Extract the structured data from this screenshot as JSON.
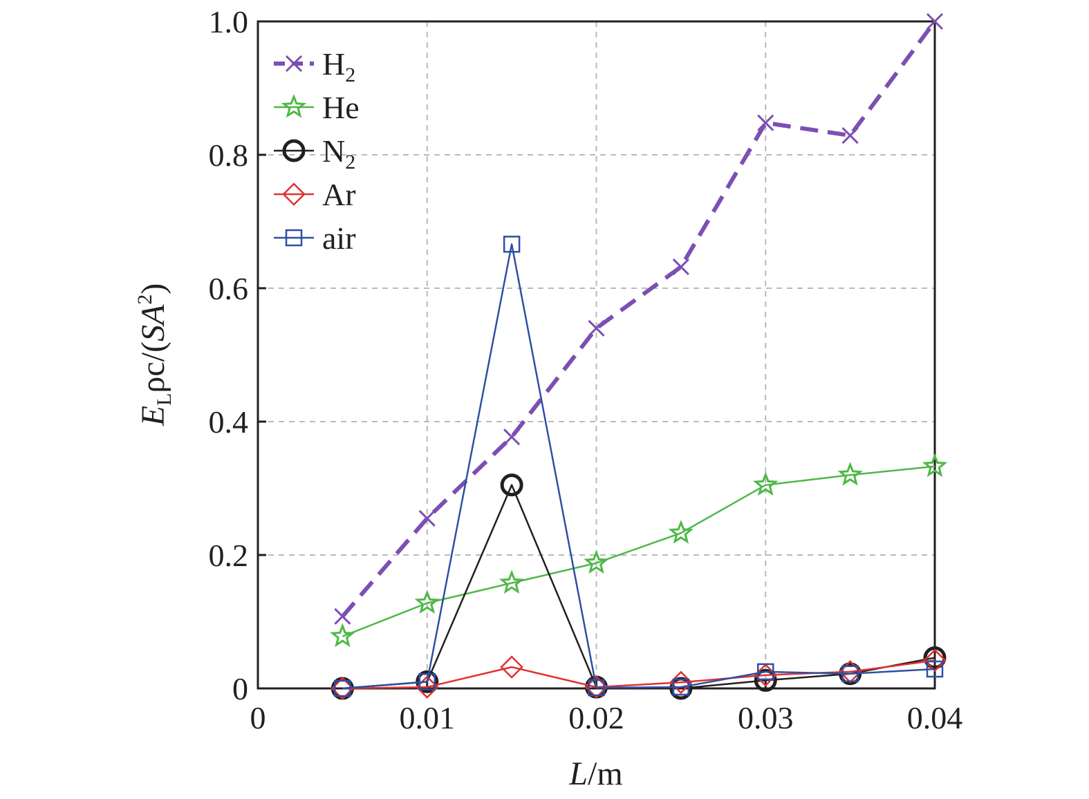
{
  "chart_data": {
    "type": "line",
    "title": "",
    "xlabel": {
      "main": "L",
      "rest": "/m"
    },
    "ylabel": {
      "main": "E",
      "sub": "L",
      "mid": "ρc/(",
      "italic": "SA",
      "sup": "2",
      "end": ")"
    },
    "xlim": [
      0,
      0.04
    ],
    "ylim": [
      0,
      1.0
    ],
    "xticks": [
      0,
      0.01,
      0.02,
      0.03,
      0.04
    ],
    "xtick_labels": [
      "0",
      "0.01",
      "0.02",
      "0.03",
      "0.04"
    ],
    "yticks": [
      0,
      0.2,
      0.4,
      0.6,
      0.8,
      1.0
    ],
    "ytick_labels": [
      "0",
      "0.2",
      "0.4",
      "0.6",
      "0.8",
      "1.0"
    ],
    "grid": true,
    "legend_position": "top-left",
    "x": [
      0.005,
      0.01,
      0.015,
      0.02,
      0.025,
      0.03,
      0.035,
      0.04
    ],
    "series": [
      {
        "name": "H",
        "name_sub": "2",
        "marker": "x",
        "color": "#7b4fb3",
        "dashed": true,
        "values": [
          0.108,
          0.255,
          0.377,
          0.54,
          0.632,
          0.848,
          0.829,
          1.0
        ]
      },
      {
        "name": "He",
        "name_sub": "",
        "marker": "star",
        "color": "#4fb848",
        "dashed": false,
        "values": [
          0.078,
          0.128,
          0.158,
          0.188,
          0.233,
          0.305,
          0.32,
          0.333
        ]
      },
      {
        "name": "N",
        "name_sub": "2",
        "marker": "circle",
        "color": "#231f20",
        "dashed": false,
        "values": [
          0.0,
          0.01,
          0.305,
          0.002,
          0.0,
          0.012,
          0.022,
          0.046
        ]
      },
      {
        "name": "Ar",
        "name_sub": "",
        "marker": "diamond",
        "color": "#e03131",
        "dashed": false,
        "values": [
          0.0,
          0.002,
          0.032,
          0.002,
          0.009,
          0.02,
          0.025,
          0.042
        ]
      },
      {
        "name": "air",
        "name_sub": "",
        "marker": "square",
        "color": "#2e4fa3",
        "dashed": false,
        "values": [
          0.0,
          0.01,
          0.666,
          0.001,
          0.002,
          0.025,
          0.022,
          0.029
        ]
      }
    ]
  }
}
